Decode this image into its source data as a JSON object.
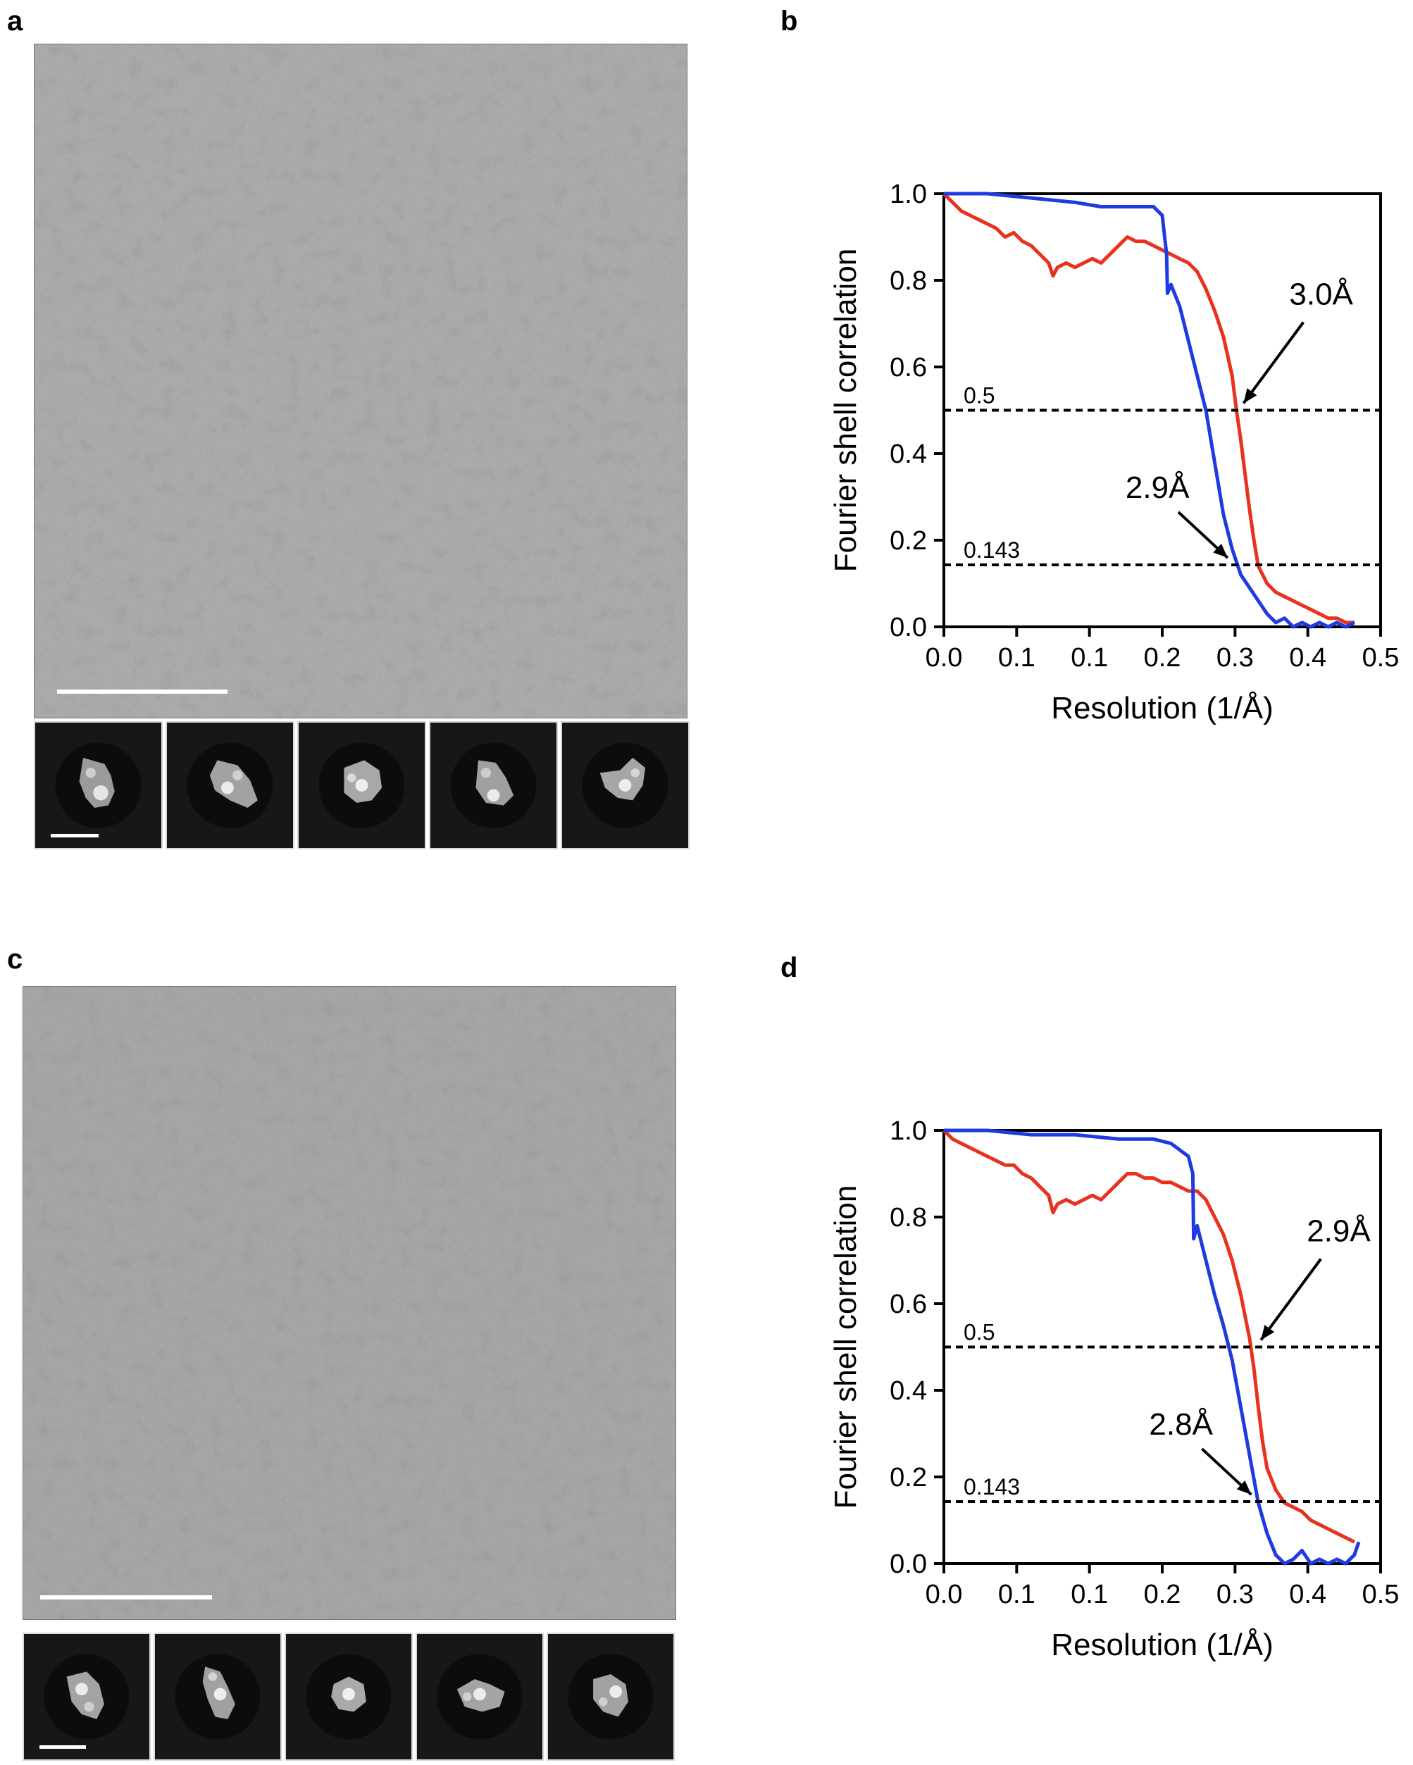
{
  "panels": {
    "a": {
      "label": "a",
      "type": "micrograph-with-2d-classes",
      "class_count": 5
    },
    "b": {
      "label": "b"
    },
    "c": {
      "label": "c",
      "type": "micrograph-with-2d-classes",
      "class_count": 5
    },
    "d": {
      "label": "d"
    }
  },
  "colors": {
    "red_curve": "#e8321e",
    "blue_curve": "#1f3be0",
    "threshold_line": "#000000"
  },
  "chart_data": [
    {
      "id": "b",
      "type": "line",
      "title": "",
      "xlabel": "Resolution (1/Å)",
      "ylabel": "Fourier shell correlation",
      "xlim": [
        0,
        0.5
      ],
      "ylim": [
        0,
        1.0
      ],
      "xticks": [
        "0.0",
        "0.1",
        "0.1",
        "0.2",
        "0.3",
        "0.4",
        "0.5"
      ],
      "yticks": [
        "0.0",
        "0.2",
        "0.4",
        "0.6",
        "0.8",
        "1.0"
      ],
      "grid": false,
      "thresholds": [
        {
          "value": 0.5,
          "label": "0.5"
        },
        {
          "value": 0.143,
          "label": "0.143"
        }
      ],
      "annotations": [
        {
          "text": "3.0Å",
          "points_to": [
            0.335,
            0.5
          ]
        },
        {
          "text": "2.9Å",
          "points_to": [
            0.333,
            0.143
          ]
        }
      ],
      "series": [
        {
          "color": "red",
          "x": [
            0.0,
            0.01,
            0.02,
            0.03,
            0.04,
            0.05,
            0.06,
            0.07,
            0.08,
            0.09,
            0.1,
            0.11,
            0.12,
            0.125,
            0.13,
            0.14,
            0.15,
            0.16,
            0.17,
            0.18,
            0.19,
            0.2,
            0.21,
            0.22,
            0.23,
            0.24,
            0.25,
            0.26,
            0.27,
            0.28,
            0.29,
            0.3,
            0.31,
            0.32,
            0.33,
            0.335,
            0.34,
            0.345,
            0.35,
            0.355,
            0.36,
            0.37,
            0.38,
            0.39,
            0.4,
            0.41,
            0.42,
            0.43,
            0.44,
            0.45,
            0.46,
            0.47
          ],
          "y": [
            1.0,
            0.98,
            0.96,
            0.95,
            0.94,
            0.93,
            0.92,
            0.9,
            0.91,
            0.89,
            0.88,
            0.86,
            0.84,
            0.81,
            0.83,
            0.84,
            0.83,
            0.84,
            0.85,
            0.84,
            0.86,
            0.88,
            0.9,
            0.89,
            0.89,
            0.88,
            0.87,
            0.86,
            0.85,
            0.84,
            0.82,
            0.78,
            0.73,
            0.67,
            0.58,
            0.5,
            0.43,
            0.35,
            0.27,
            0.2,
            0.14,
            0.1,
            0.08,
            0.07,
            0.06,
            0.05,
            0.04,
            0.03,
            0.02,
            0.02,
            0.01,
            0.01
          ]
        },
        {
          "color": "blue",
          "x": [
            0.0,
            0.05,
            0.1,
            0.15,
            0.18,
            0.2,
            0.22,
            0.24,
            0.25,
            0.255,
            0.256,
            0.26,
            0.27,
            0.28,
            0.29,
            0.3,
            0.31,
            0.32,
            0.33,
            0.34,
            0.35,
            0.36,
            0.37,
            0.38,
            0.39,
            0.4,
            0.41,
            0.42,
            0.43,
            0.44,
            0.45,
            0.46,
            0.47
          ],
          "y": [
            1.0,
            1.0,
            0.99,
            0.98,
            0.97,
            0.97,
            0.97,
            0.97,
            0.95,
            0.86,
            0.77,
            0.79,
            0.74,
            0.66,
            0.58,
            0.5,
            0.38,
            0.26,
            0.18,
            0.12,
            0.09,
            0.06,
            0.03,
            0.01,
            0.02,
            0.0,
            0.01,
            0.0,
            0.01,
            0.0,
            0.01,
            0.0,
            0.01
          ]
        }
      ]
    },
    {
      "id": "d",
      "type": "line",
      "title": "",
      "xlabel": "Resolution (1/Å)",
      "ylabel": "Fourier shell correlation",
      "xlim": [
        0,
        0.5
      ],
      "ylim": [
        0,
        1.0
      ],
      "xticks": [
        "0.0",
        "0.1",
        "0.1",
        "0.2",
        "0.3",
        "0.4",
        "0.5"
      ],
      "yticks": [
        "0.0",
        "0.2",
        "0.4",
        "0.6",
        "0.8",
        "1.0"
      ],
      "grid": false,
      "thresholds": [
        {
          "value": 0.5,
          "label": "0.5"
        },
        {
          "value": 0.143,
          "label": "0.143"
        }
      ],
      "annotations": [
        {
          "text": "2.9Å",
          "points_to": [
            0.355,
            0.5
          ]
        },
        {
          "text": "2.8Å",
          "points_to": [
            0.36,
            0.143
          ]
        }
      ],
      "series": [
        {
          "color": "red",
          "x": [
            0.0,
            0.01,
            0.02,
            0.03,
            0.04,
            0.05,
            0.06,
            0.07,
            0.08,
            0.09,
            0.1,
            0.11,
            0.12,
            0.125,
            0.13,
            0.14,
            0.15,
            0.16,
            0.17,
            0.18,
            0.19,
            0.2,
            0.21,
            0.22,
            0.23,
            0.24,
            0.25,
            0.26,
            0.27,
            0.28,
            0.29,
            0.3,
            0.31,
            0.32,
            0.33,
            0.34,
            0.35,
            0.355,
            0.36,
            0.365,
            0.37,
            0.38,
            0.39,
            0.4,
            0.41,
            0.42,
            0.43,
            0.44,
            0.45,
            0.46,
            0.47
          ],
          "y": [
            1.0,
            0.98,
            0.97,
            0.96,
            0.95,
            0.94,
            0.93,
            0.92,
            0.92,
            0.9,
            0.89,
            0.87,
            0.85,
            0.81,
            0.83,
            0.84,
            0.83,
            0.84,
            0.85,
            0.84,
            0.86,
            0.88,
            0.9,
            0.9,
            0.89,
            0.89,
            0.88,
            0.88,
            0.87,
            0.86,
            0.86,
            0.84,
            0.8,
            0.76,
            0.7,
            0.62,
            0.52,
            0.45,
            0.36,
            0.28,
            0.22,
            0.17,
            0.14,
            0.13,
            0.12,
            0.1,
            0.09,
            0.08,
            0.07,
            0.06,
            0.05
          ]
        },
        {
          "color": "blue",
          "x": [
            0.0,
            0.05,
            0.1,
            0.15,
            0.2,
            0.24,
            0.26,
            0.28,
            0.285,
            0.286,
            0.29,
            0.3,
            0.31,
            0.32,
            0.33,
            0.34,
            0.35,
            0.36,
            0.37,
            0.38,
            0.39,
            0.4,
            0.41,
            0.42,
            0.43,
            0.44,
            0.45,
            0.46,
            0.47,
            0.475
          ],
          "y": [
            1.0,
            1.0,
            0.99,
            0.99,
            0.98,
            0.98,
            0.97,
            0.94,
            0.9,
            0.75,
            0.78,
            0.7,
            0.62,
            0.55,
            0.47,
            0.36,
            0.25,
            0.14,
            0.07,
            0.02,
            0.0,
            0.01,
            0.03,
            0.0,
            0.01,
            0.0,
            0.01,
            0.0,
            0.02,
            0.05
          ]
        }
      ]
    }
  ]
}
